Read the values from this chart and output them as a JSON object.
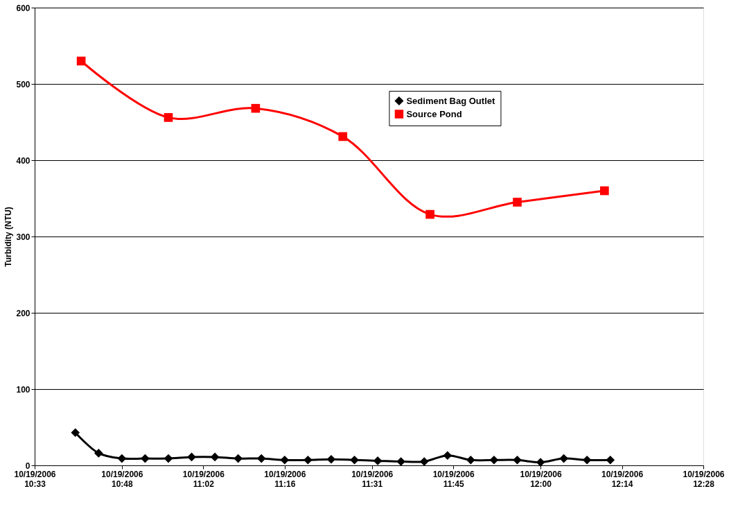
{
  "chart_data": {
    "type": "line",
    "ylabel": "Turbidity (NTU)",
    "grid": "y",
    "legend": "top right",
    "xlim": [
      "2006-10-19T10:33",
      "2006-10-19T12:28"
    ],
    "ylim": [
      0,
      600
    ],
    "yticks": [
      0,
      100,
      200,
      300,
      400,
      500,
      600
    ],
    "xticks": [
      {
        "value": "2006-10-19T10:33",
        "label": "10/19/2006\n10:33"
      },
      {
        "value": "2006-10-19T10:48",
        "label": "10/19/2006\n10:48"
      },
      {
        "value": "2006-10-19T11:02",
        "label": "10/19/2006\n11:02"
      },
      {
        "value": "2006-10-19T11:16",
        "label": "10/19/2006\n11:16"
      },
      {
        "value": "2006-10-19T11:31",
        "label": "10/19/2006\n11:31"
      },
      {
        "value": "2006-10-19T11:45",
        "label": "10/19/2006\n11:45"
      },
      {
        "value": "2006-10-19T12:00",
        "label": "10/19/2006\n12:00"
      },
      {
        "value": "2006-10-19T12:14",
        "label": "10/19/2006\n12:14"
      },
      {
        "value": "2006-10-19T12:28",
        "label": "10/19/2006\n12:28"
      }
    ],
    "series": [
      {
        "name": "Sediment Bag Outlet",
        "color": "#000000",
        "marker": "diamond",
        "x": [
          "2006-10-19T10:40",
          "2006-10-19T10:44",
          "2006-10-19T10:48",
          "2006-10-19T10:52",
          "2006-10-19T10:56",
          "2006-10-19T11:00",
          "2006-10-19T11:04",
          "2006-10-19T11:08",
          "2006-10-19T11:12",
          "2006-10-19T11:16",
          "2006-10-19T11:20",
          "2006-10-19T11:24",
          "2006-10-19T11:28",
          "2006-10-19T11:32",
          "2006-10-19T11:36",
          "2006-10-19T11:40",
          "2006-10-19T11:44",
          "2006-10-19T11:48",
          "2006-10-19T11:52",
          "2006-10-19T11:56",
          "2006-10-19T12:00",
          "2006-10-19T12:04",
          "2006-10-19T12:08",
          "2006-10-19T12:12"
        ],
        "values": [
          43,
          16,
          9,
          9,
          9,
          11,
          11,
          9,
          9,
          7,
          7,
          8,
          7,
          6,
          5,
          5,
          13,
          7,
          7,
          7,
          4,
          9,
          7,
          7
        ]
      },
      {
        "name": "Source Pond",
        "color": "#ff0000",
        "marker": "square",
        "x": [
          "2006-10-19T10:41",
          "2006-10-19T10:56",
          "2006-10-19T11:11",
          "2006-10-19T11:26",
          "2006-10-19T11:41",
          "2006-10-19T11:56",
          "2006-10-19T12:11"
        ],
        "values": [
          530,
          456,
          468,
          431,
          329,
          345,
          360
        ]
      }
    ]
  }
}
